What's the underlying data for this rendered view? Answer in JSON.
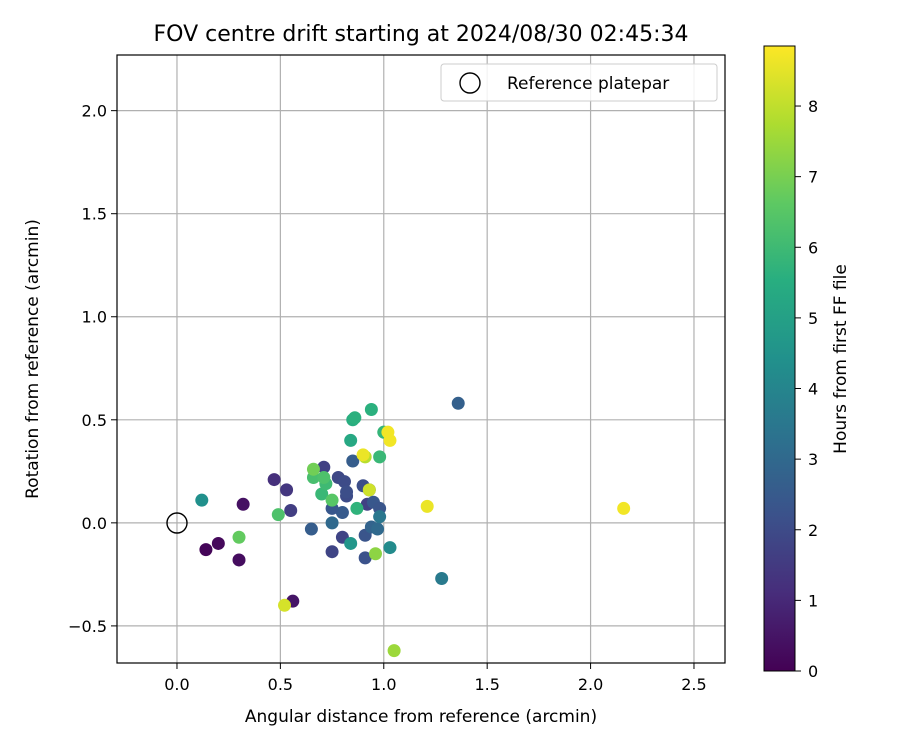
{
  "chart_data": {
    "type": "scatter",
    "title": "FOV centre drift starting at 2024/08/30 02:45:34",
    "xlabel": "Angular distance from reference (arcmin)",
    "ylabel": "Rotation from reference (arcmin)",
    "xlim": [
      -0.29,
      2.65
    ],
    "ylim": [
      -0.68,
      2.27
    ],
    "xticks": [
      0.0,
      0.5,
      1.0,
      1.5,
      2.0,
      2.5
    ],
    "xtick_labels": [
      "0.0",
      "0.5",
      "1.0",
      "1.5",
      "2.0",
      "2.5"
    ],
    "yticks": [
      -0.5,
      0.0,
      0.5,
      1.0,
      1.5,
      2.0
    ],
    "ytick_labels": [
      "−0.5",
      "0.0",
      "0.5",
      "1.0",
      "1.5",
      "2.0"
    ],
    "grid": true,
    "legend": {
      "placement": "upper-right",
      "entries": [
        "Reference platepar"
      ]
    },
    "reference": {
      "x": 0.0,
      "y": 0.0
    },
    "colorbar": {
      "label": "Hours from first FF file",
      "colormap": "viridis",
      "range": [
        0,
        8.85
      ],
      "ticks": [
        0,
        1,
        2,
        3,
        4,
        5,
        6,
        7,
        8
      ],
      "tick_labels": [
        "0",
        "1",
        "2",
        "3",
        "4",
        "5",
        "6",
        "7",
        "8"
      ]
    },
    "points": [
      {
        "x": 0.14,
        "y": -0.13,
        "h": 0.1
      },
      {
        "x": 0.2,
        "y": -0.1,
        "h": 0.2
      },
      {
        "x": 0.3,
        "y": -0.18,
        "h": 0.3
      },
      {
        "x": 0.32,
        "y": 0.09,
        "h": 0.4
      },
      {
        "x": 0.56,
        "y": -0.38,
        "h": 0.5
      },
      {
        "x": 0.47,
        "y": 0.21,
        "h": 1.2
      },
      {
        "x": 0.53,
        "y": 0.16,
        "h": 1.4
      },
      {
        "x": 0.55,
        "y": 0.06,
        "h": 1.6
      },
      {
        "x": 0.71,
        "y": 0.27,
        "h": 1.7
      },
      {
        "x": 0.75,
        "y": -0.14,
        "h": 1.8
      },
      {
        "x": 0.8,
        "y": -0.07,
        "h": 1.8
      },
      {
        "x": 0.78,
        "y": 0.22,
        "h": 1.9
      },
      {
        "x": 0.81,
        "y": 0.2,
        "h": 2.0
      },
      {
        "x": 0.82,
        "y": 0.13,
        "h": 2.0
      },
      {
        "x": 0.82,
        "y": 0.15,
        "h": 2.1
      },
      {
        "x": 0.9,
        "y": 0.18,
        "h": 2.1
      },
      {
        "x": 0.93,
        "y": 0.16,
        "h": 2.2
      },
      {
        "x": 0.92,
        "y": 0.09,
        "h": 1.7
      },
      {
        "x": 0.95,
        "y": 0.1,
        "h": 2.4
      },
      {
        "x": 0.98,
        "y": 0.07,
        "h": 2.3
      },
      {
        "x": 0.8,
        "y": 0.05,
        "h": 2.5
      },
      {
        "x": 0.75,
        "y": 0.07,
        "h": 2.4
      },
      {
        "x": 0.91,
        "y": -0.06,
        "h": 2.3
      },
      {
        "x": 0.91,
        "y": -0.17,
        "h": 2.2
      },
      {
        "x": 0.65,
        "y": -0.03,
        "h": 2.6
      },
      {
        "x": 0.85,
        "y": 0.3,
        "h": 2.6
      },
      {
        "x": 0.75,
        "y": 0.0,
        "h": 3.0
      },
      {
        "x": 0.94,
        "y": -0.02,
        "h": 2.8
      },
      {
        "x": 0.97,
        "y": -0.03,
        "h": 3.0
      },
      {
        "x": 1.36,
        "y": 0.58,
        "h": 2.7
      },
      {
        "x": 1.28,
        "y": -0.27,
        "h": 3.6
      },
      {
        "x": 0.98,
        "y": 0.03,
        "h": 3.5
      },
      {
        "x": 1.03,
        "y": -0.12,
        "h": 4.2
      },
      {
        "x": 0.84,
        "y": -0.1,
        "h": 4.6
      },
      {
        "x": 0.12,
        "y": 0.11,
        "h": 4.4
      },
      {
        "x": 0.84,
        "y": 0.4,
        "h": 5.3
      },
      {
        "x": 0.85,
        "y": 0.5,
        "h": 5.5
      },
      {
        "x": 0.86,
        "y": 0.51,
        "h": 5.6
      },
      {
        "x": 0.94,
        "y": 0.55,
        "h": 5.6
      },
      {
        "x": 1.0,
        "y": 0.44,
        "h": 5.8
      },
      {
        "x": 0.98,
        "y": 0.32,
        "h": 5.9
      },
      {
        "x": 0.87,
        "y": 0.07,
        "h": 5.7
      },
      {
        "x": 0.7,
        "y": 0.14,
        "h": 5.9
      },
      {
        "x": 0.72,
        "y": 0.19,
        "h": 6.0
      },
      {
        "x": 0.66,
        "y": 0.22,
        "h": 6.2
      },
      {
        "x": 0.71,
        "y": 0.22,
        "h": 6.3
      },
      {
        "x": 0.75,
        "y": 0.11,
        "h": 6.5
      },
      {
        "x": 0.49,
        "y": 0.04,
        "h": 6.3
      },
      {
        "x": 0.3,
        "y": -0.07,
        "h": 6.7
      },
      {
        "x": 0.66,
        "y": 0.26,
        "h": 6.9
      },
      {
        "x": 0.96,
        "y": -0.15,
        "h": 7.3
      },
      {
        "x": 1.05,
        "y": -0.62,
        "h": 7.5
      },
      {
        "x": 0.91,
        "y": 0.32,
        "h": 7.9
      },
      {
        "x": 0.93,
        "y": 0.16,
        "h": 8.2
      },
      {
        "x": 0.52,
        "y": -0.4,
        "h": 8.3
      },
      {
        "x": 0.9,
        "y": 0.33,
        "h": 8.6
      },
      {
        "x": 1.02,
        "y": 0.44,
        "h": 8.7
      },
      {
        "x": 1.03,
        "y": 0.4,
        "h": 8.7
      },
      {
        "x": 1.21,
        "y": 0.08,
        "h": 8.6
      },
      {
        "x": 2.16,
        "y": 0.07,
        "h": 8.7
      }
    ]
  }
}
